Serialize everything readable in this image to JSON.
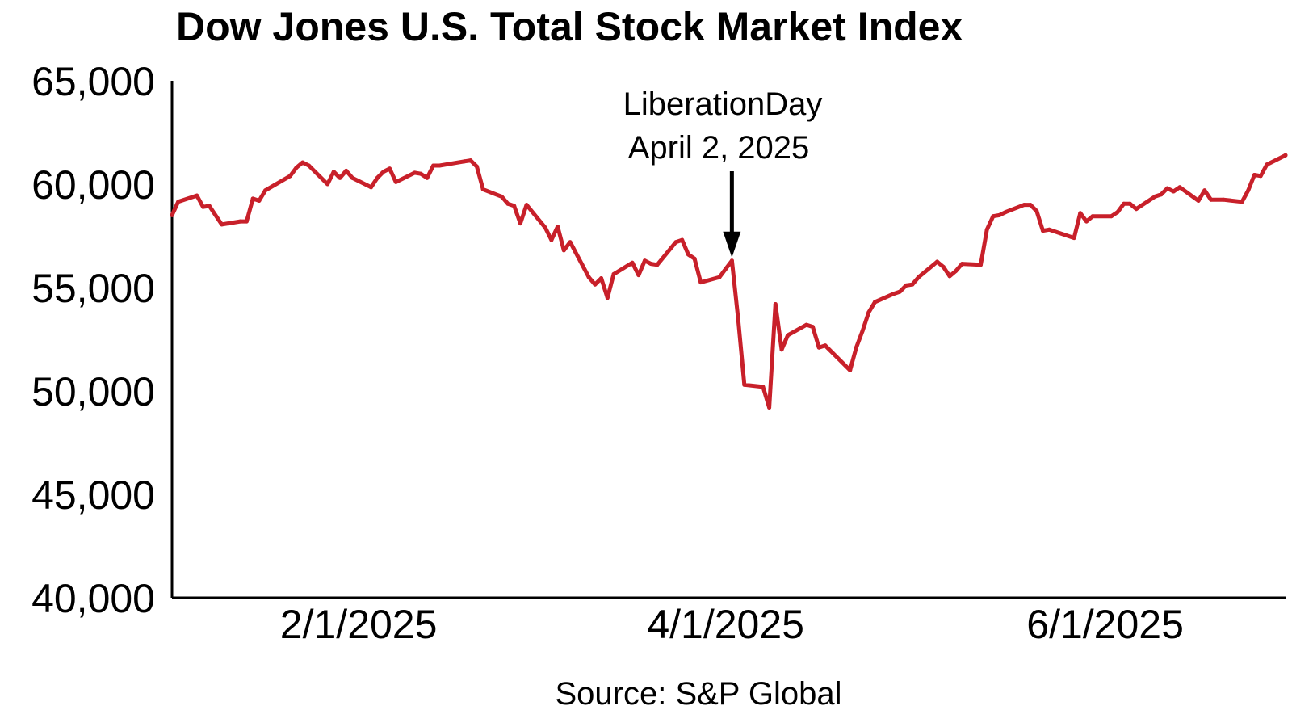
{
  "chart_data": {
    "type": "line",
    "title": "Dow Jones U.S. Total Stock Market Index",
    "source": "Source: S&P Global",
    "xlabel": "",
    "ylabel": "",
    "xlim": [
      "2025-01-02",
      "2025-06-30"
    ],
    "ylim": [
      40000,
      65000
    ],
    "yticks": [
      40000,
      45000,
      50000,
      55000,
      60000,
      65000
    ],
    "ytick_labels": [
      "40,000",
      "45,000",
      "50,000",
      "55,000",
      "60,000",
      "65,000"
    ],
    "xticks": [
      "2025-02-01",
      "2025-04-01",
      "2025-06-01"
    ],
    "xtick_labels": [
      "2/1/2025",
      "4/1/2025",
      "6/1/2025"
    ],
    "grid": false,
    "line_color": "#c8202a",
    "annotation": {
      "line1": "LiberationDay",
      "line2": "April 2, 2025",
      "date": "2025-04-02"
    },
    "series": [
      {
        "x": [
          "2025-01-02",
          "2025-01-03",
          "2025-01-06",
          "2025-01-07",
          "2025-01-08",
          "2025-01-10",
          "2025-01-13",
          "2025-01-14",
          "2025-01-15",
          "2025-01-16",
          "2025-01-17",
          "2025-01-21",
          "2025-01-22",
          "2025-01-23",
          "2025-01-24",
          "2025-01-27",
          "2025-01-28",
          "2025-01-29",
          "2025-01-30",
          "2025-01-31",
          "2025-02-03",
          "2025-02-04",
          "2025-02-05",
          "2025-02-06",
          "2025-02-07",
          "2025-02-10",
          "2025-02-11",
          "2025-02-12",
          "2025-02-13",
          "2025-02-14",
          "2025-02-18",
          "2025-02-19",
          "2025-02-20",
          "2025-02-21",
          "2025-02-24",
          "2025-02-25",
          "2025-02-26",
          "2025-02-27",
          "2025-02-28",
          "2025-03-03",
          "2025-03-04",
          "2025-03-05",
          "2025-03-06",
          "2025-03-07",
          "2025-03-10",
          "2025-03-11",
          "2025-03-12",
          "2025-03-13",
          "2025-03-14",
          "2025-03-17",
          "2025-03-18",
          "2025-03-19",
          "2025-03-20",
          "2025-03-21",
          "2025-03-24",
          "2025-03-25",
          "2025-03-26",
          "2025-03-27",
          "2025-03-28",
          "2025-03-31",
          "2025-04-01",
          "2025-04-02",
          "2025-04-03",
          "2025-04-04",
          "2025-04-07",
          "2025-04-08",
          "2025-04-09",
          "2025-04-10",
          "2025-04-11",
          "2025-04-14",
          "2025-04-15",
          "2025-04-16",
          "2025-04-17",
          "2025-04-21",
          "2025-04-22",
          "2025-04-23",
          "2025-04-24",
          "2025-04-25",
          "2025-04-28",
          "2025-04-29",
          "2025-04-30",
          "2025-05-01",
          "2025-05-02",
          "2025-05-05",
          "2025-05-06",
          "2025-05-07",
          "2025-05-08",
          "2025-05-09",
          "2025-05-12",
          "2025-05-13",
          "2025-05-14",
          "2025-05-15",
          "2025-05-16",
          "2025-05-19",
          "2025-05-20",
          "2025-05-21",
          "2025-05-22",
          "2025-05-23",
          "2025-05-27",
          "2025-05-28",
          "2025-05-29",
          "2025-05-30",
          "2025-06-02",
          "2025-06-03",
          "2025-06-04",
          "2025-06-05",
          "2025-06-06",
          "2025-06-09",
          "2025-06-10",
          "2025-06-11",
          "2025-06-12",
          "2025-06-13",
          "2025-06-16",
          "2025-06-17",
          "2025-06-18",
          "2025-06-20",
          "2025-06-23",
          "2025-06-24",
          "2025-06-25",
          "2025-06-26",
          "2025-06-27",
          "2025-06-30"
        ],
        "values": [
          58500,
          59150,
          59450,
          58900,
          58950,
          58050,
          58200,
          58200,
          59300,
          59200,
          59700,
          60400,
          60800,
          61050,
          60900,
          60000,
          60600,
          60300,
          60650,
          60300,
          59850,
          60300,
          60600,
          60750,
          60100,
          60550,
          60500,
          60300,
          60900,
          60900,
          61100,
          61150,
          60850,
          59750,
          59400,
          59050,
          58950,
          58100,
          59000,
          57900,
          57300,
          57950,
          56800,
          57200,
          55500,
          55150,
          55450,
          54500,
          55650,
          56200,
          55600,
          56300,
          56150,
          56100,
          57200,
          57300,
          56600,
          56400,
          55250,
          55500,
          55900,
          56300,
          53500,
          50300,
          50200,
          49200,
          54200,
          52000,
          52700,
          53200,
          53100,
          52100,
          52200,
          51000,
          52100,
          52900,
          53800,
          54300,
          54700,
          54800,
          55100,
          55150,
          55500,
          56250,
          56000,
          55550,
          55800,
          56150,
          56100,
          57800,
          58450,
          58500,
          58650,
          59000,
          59000,
          58700,
          57750,
          57800,
          57400,
          58600,
          58200,
          58450,
          58450,
          58650,
          59050,
          59050,
          58800,
          59400,
          59500,
          59800,
          59650,
          59850,
          59200,
          59700,
          59250,
          59250,
          59150,
          59700,
          60450,
          60400,
          60950,
          61400
        ]
      }
    ]
  }
}
